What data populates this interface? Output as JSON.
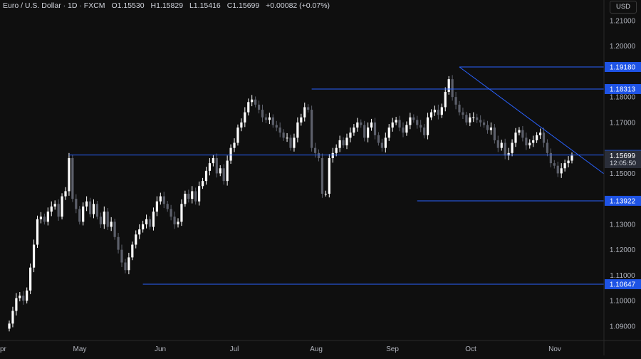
{
  "header": {
    "symbol": "Euro / U.S. Dollar · 1D · FXCM",
    "open": "O1.15530",
    "high": "H1.15829",
    "low": "L1.15416",
    "close": "C1.15699",
    "change": "+0.00082 (+0.07%)"
  },
  "currency_label": "USD",
  "time_remaining": "12:05:50",
  "colors": {
    "background": "#0f0f0f",
    "candle_up": "#ffffff",
    "candle_down": "#5d606b",
    "level_line": "#2962ff",
    "label_bg": "#1e53e5",
    "axis_text": "#b2b5be"
  },
  "chart_data": {
    "type": "candlestick",
    "y_ticks": [
      "1.21000",
      "1.20000",
      "1.18000",
      "1.17000",
      "1.15000",
      "1.13000",
      "1.12000",
      "1.11000",
      "1.10000",
      "1.09000"
    ],
    "x_ticks": [
      "Apr",
      "May",
      "Jun",
      "Jul",
      "Aug",
      "Sep",
      "Oct",
      "Nov"
    ],
    "ylim": [
      1.085,
      1.213
    ],
    "horizontal_levels": [
      {
        "label": "1.19180",
        "value": 1.1918
      },
      {
        "label": "1.18313",
        "value": 1.18313
      },
      {
        "label": "1.15723",
        "value": 1.15723
      },
      {
        "label": "1.13922",
        "value": 1.13922
      },
      {
        "label": "1.10647",
        "value": 1.10647
      }
    ],
    "current_price": {
      "label": "1.15699",
      "value": 1.15699
    },
    "trendline": {
      "from": {
        "date": "Sep 17",
        "value": 1.1918
      },
      "to": {
        "date": "Nov 7",
        "value": 1.1535
      }
    },
    "closes": [
      1.091,
      1.096,
      1.101,
      1.102,
      1.1,
      1.104,
      1.113,
      1.122,
      1.132,
      1.133,
      1.131,
      1.135,
      1.137,
      1.138,
      1.133,
      1.141,
      1.143,
      1.156,
      1.14,
      1.136,
      1.131,
      1.137,
      1.139,
      1.134,
      1.138,
      1.133,
      1.13,
      1.135,
      1.129,
      1.131,
      1.125,
      1.12,
      1.115,
      1.112,
      1.117,
      1.122,
      1.126,
      1.128,
      1.13,
      1.132,
      1.129,
      1.135,
      1.139,
      1.141,
      1.138,
      1.136,
      1.133,
      1.13,
      1.131,
      1.138,
      1.142,
      1.14,
      1.143,
      1.139,
      1.145,
      1.147,
      1.151,
      1.154,
      1.156,
      1.15,
      1.152,
      1.147,
      1.155,
      1.16,
      1.162,
      1.168,
      1.17,
      1.174,
      1.178,
      1.179,
      1.177,
      1.175,
      1.172,
      1.171,
      1.172,
      1.169,
      1.168,
      1.166,
      1.164,
      1.164,
      1.16,
      1.164,
      1.17,
      1.172,
      1.176,
      1.175,
      1.16,
      1.158,
      1.156,
      1.142,
      1.142,
      1.156,
      1.158,
      1.16,
      1.163,
      1.161,
      1.164,
      1.166,
      1.168,
      1.17,
      1.169,
      1.164,
      1.168,
      1.17,
      1.165,
      1.162,
      1.16,
      1.164,
      1.168,
      1.17,
      1.171,
      1.168,
      1.166,
      1.169,
      1.172,
      1.171,
      1.169,
      1.168,
      1.165,
      1.172,
      1.174,
      1.175,
      1.173,
      1.176,
      1.182,
      1.187,
      1.18,
      1.177,
      1.174,
      1.173,
      1.17,
      1.172,
      1.172,
      1.171,
      1.17,
      1.169,
      1.167,
      1.168,
      1.163,
      1.16,
      1.162,
      1.157,
      1.158,
      1.162,
      1.166,
      1.167,
      1.164,
      1.161,
      1.162,
      1.163,
      1.165,
      1.166,
      1.162,
      1.158,
      1.154,
      1.153,
      1.15,
      1.152,
      1.154,
      1.155,
      1.157
    ]
  }
}
